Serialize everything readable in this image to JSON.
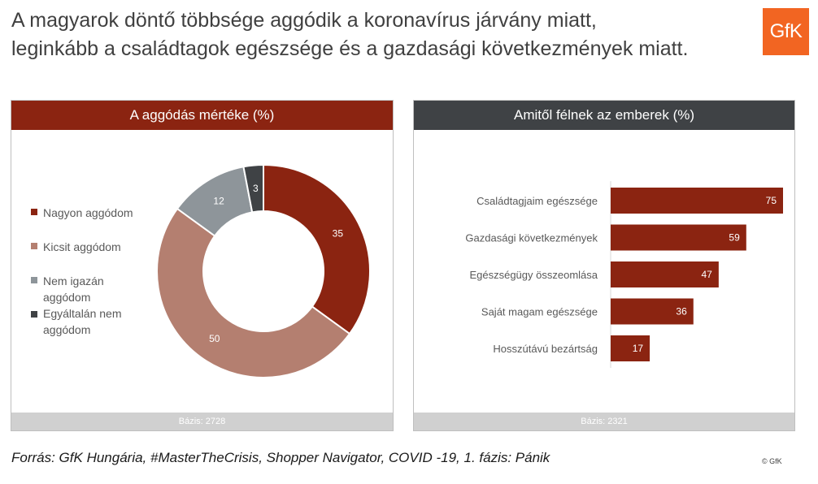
{
  "title_lines": [
    "A magyarok döntő többsége aggódik a koronavírus járvány miatt,",
    "leginkább a családtagok egészsége és a gazdasági következmények miatt."
  ],
  "logo_text": "GfK",
  "source": "Forrás: GfK Hungária, #MasterTheCrisis, Shopper Navigator, COVID -19, 1. fázis: Pánik",
  "copyright": "© GfK",
  "colors": {
    "dark_red": "#8b2411",
    "light_red": "#b47f70",
    "gray": "#8e959a",
    "dark_gray": "#3f4245",
    "orange": "#f26522"
  },
  "chart_data": [
    {
      "type": "pie",
      "donut": true,
      "title": "A aggódás mértéke (%)",
      "labels": [
        "Nagyon aggódom",
        "Kicsit aggódom",
        "Nem igazán aggódom",
        "Egyáltalán nem aggódom"
      ],
      "values": [
        35,
        50,
        12,
        3
      ],
      "colors": [
        "#8b2411",
        "#b47f70",
        "#8e959a",
        "#3f4245"
      ],
      "legend": "left",
      "footer": "Bázis: 2728"
    },
    {
      "type": "bar",
      "orientation": "horizontal",
      "title": "Amitől félnek az emberek (%)",
      "categories": [
        "Családtagjaim egészsége",
        "Gazdasági következmények",
        "Egészségügy összeomlása",
        "Saját magam egészsége",
        "Hosszútávú bezártság"
      ],
      "values": [
        75,
        59,
        47,
        36,
        17
      ],
      "color": "#8b2411",
      "xlim": [
        0,
        75
      ],
      "footer": "Bázis: 2321"
    }
  ]
}
